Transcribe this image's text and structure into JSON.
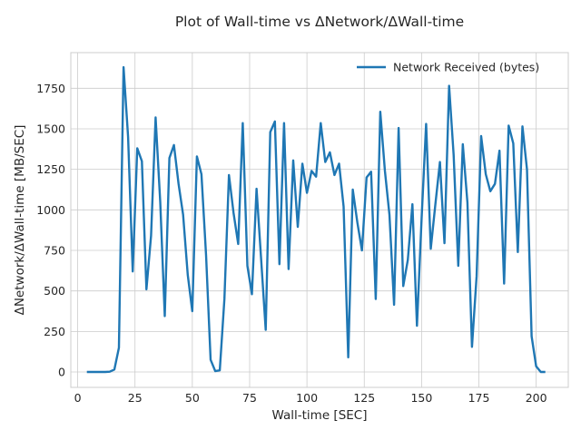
{
  "chart_data": {
    "type": "line",
    "title": "Plot of Wall-time vs ΔNetwork/ΔWall-time",
    "xlabel": "Wall-time [SEC]",
    "ylabel": "ΔNetwork/ΔWall-time [MB/SEC]",
    "xlim": [
      -3,
      214
    ],
    "ylim": [
      -95,
      1970
    ],
    "xticks": [
      0,
      25,
      50,
      75,
      100,
      125,
      150,
      175,
      200
    ],
    "yticks": [
      0,
      250,
      500,
      750,
      1000,
      1250,
      1500,
      1750
    ],
    "grid": true,
    "legend_position": "top-right",
    "series": [
      {
        "name": "Network Received (bytes)",
        "color": "#1f77b4",
        "x": [
          4,
          6,
          8,
          10,
          12,
          14,
          16,
          18,
          20,
          22,
          24,
          26,
          28,
          30,
          32,
          34,
          36,
          38,
          40,
          42,
          44,
          46,
          48,
          50,
          52,
          54,
          56,
          58,
          60,
          62,
          64,
          66,
          68,
          70,
          72,
          74,
          76,
          78,
          80,
          82,
          84,
          86,
          88,
          90,
          92,
          94,
          96,
          98,
          100,
          102,
          104,
          106,
          108,
          110,
          112,
          114,
          116,
          118,
          120,
          122,
          124,
          126,
          128,
          130,
          132,
          134,
          136,
          138,
          140,
          142,
          144,
          146,
          148,
          150,
          152,
          154,
          156,
          158,
          160,
          162,
          164,
          166,
          168,
          170,
          172,
          174,
          176,
          178,
          180,
          182,
          184,
          186,
          188,
          190,
          192,
          194,
          196,
          198,
          200,
          202,
          204
        ],
        "values": [
          0,
          0,
          0,
          0,
          0,
          2,
          15,
          150,
          1880,
          1450,
          620,
          1380,
          1300,
          510,
          840,
          1570,
          1050,
          345,
          1320,
          1400,
          1160,
          970,
          600,
          375,
          1330,
          1220,
          720,
          75,
          5,
          10,
          450,
          1215,
          980,
          790,
          1535,
          655,
          480,
          1130,
          700,
          260,
          1480,
          1545,
          665,
          1535,
          635,
          1305,
          895,
          1285,
          1105,
          1240,
          1205,
          1535,
          1295,
          1355,
          1215,
          1285,
          1020,
          90,
          1125,
          920,
          750,
          1200,
          1235,
          450,
          1605,
          1240,
          970,
          415,
          1505,
          530,
          690,
          1035,
          285,
          945,
          1530,
          760,
          1030,
          1295,
          795,
          1765,
          1340,
          655,
          1405,
          1045,
          155,
          590,
          1455,
          1220,
          1115,
          1160,
          1365,
          545,
          1520,
          1410,
          740,
          1515,
          1250,
          220,
          35,
          0,
          0
        ]
      }
    ]
  }
}
